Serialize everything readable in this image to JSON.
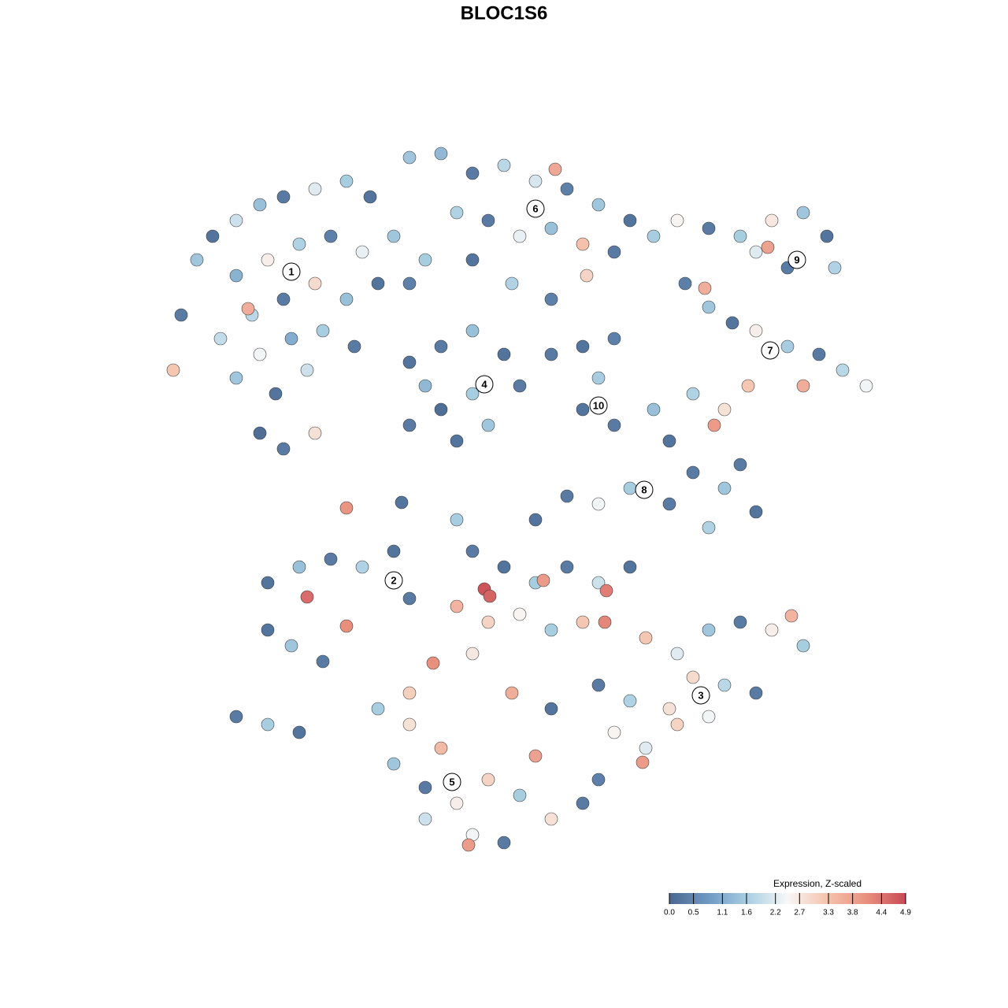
{
  "chart_data": {
    "type": "scatter",
    "title": "BLOC1S6",
    "xlim": [
      0,
      128
    ],
    "ylim": [
      0,
      128
    ],
    "series": [
      {
        "x": [
          23,
          25,
          27,
          30,
          33,
          36,
          40,
          44,
          47,
          30,
          34,
          38,
          42,
          46,
          50,
          32,
          36,
          40,
          44,
          48,
          28,
          33,
          37,
          41,
          45,
          30,
          35,
          39,
          33,
          36,
          40,
          22,
          31.5,
          52,
          54,
          52,
          56,
          60,
          64,
          68,
          72,
          76,
          80,
          83,
          58,
          62,
          66,
          70,
          74,
          78,
          60,
          65,
          70,
          70.5,
          74.5,
          86,
          90,
          94,
          98,
          102,
          105,
          106,
          100,
          96,
          97.5,
          87,
          90,
          93,
          96,
          100,
          104,
          107,
          110,
          102,
          95,
          88,
          92,
          89.5,
          52,
          56,
          60,
          64,
          66,
          60,
          56,
          52,
          58,
          62,
          54,
          70,
          74,
          78,
          76,
          74,
          78,
          83,
          85,
          88,
          92,
          96,
          90,
          85,
          80,
          76,
          72,
          68,
          94,
          90.7,
          34,
          38,
          42,
          46,
          50,
          52,
          34,
          37,
          41,
          39,
          44,
          30,
          34,
          38,
          44,
          51,
          58,
          60,
          64,
          68,
          72,
          76,
          80,
          61.5,
          62.2,
          69,
          77,
          58,
          62,
          66,
          70,
          74,
          76.8,
          55,
          60,
          82,
          86,
          90,
          94,
          98,
          100.5,
          102,
          88,
          92,
          96,
          85,
          80,
          78,
          82,
          86,
          90,
          76,
          81.6,
          48,
          52,
          56,
          50,
          54,
          58,
          62,
          66,
          70,
          74,
          54,
          60,
          64,
          68,
          59.5,
          52,
          65,
          70,
          76
        ],
        "y": [
          88,
          95,
          98,
          100,
          102,
          103,
          104,
          105,
          103,
          93,
          95,
          97,
          98,
          96,
          98,
          88,
          90,
          92,
          90,
          92,
          85,
          83,
          85,
          86,
          84,
          80,
          78,
          81,
          73,
          71,
          73,
          81,
          88.8,
          92,
          95,
          108,
          108.5,
          106,
          107,
          105,
          104,
          102,
          100,
          98,
          101,
          100,
          98,
          99,
          97,
          96,
          95,
          92,
          90,
          106.5,
          93,
          100,
          99,
          98,
          100,
          101,
          98,
          94,
          94,
          96,
          96.6,
          92,
          89,
          87,
          86,
          84,
          83,
          81,
          79,
          79,
          79,
          78,
          76,
          91.4,
          82,
          84,
          86,
          83,
          79,
          78,
          76,
          74,
          72,
          74,
          79,
          83,
          84,
          85,
          80,
          76,
          74,
          76,
          72,
          68,
          66,
          63,
          61,
          64,
          66,
          64,
          65,
          62,
          69,
          74,
          54,
          56,
          57,
          56,
          58,
          52,
          48,
          46,
          44,
          52.2,
          48.5,
          37,
          36,
          35,
          63.5,
          64.2,
          62,
          58,
          56,
          54,
          56,
          54,
          56,
          53.2,
          52.3,
          54.3,
          53,
          51,
          49,
          50,
          48,
          49,
          49,
          43.8,
          45,
          47,
          45,
          48,
          49,
          48,
          49.8,
          46,
          42,
          41,
          40,
          38,
          39,
          35,
          33,
          36,
          37,
          41,
          31.2,
          38,
          36,
          33,
          31,
          28,
          26,
          29,
          27,
          24,
          26,
          24,
          22,
          21,
          32,
          20.7,
          40,
          40,
          38,
          29
        ],
        "values": [
          0.3,
          1.5,
          0.2,
          2.0,
          1.4,
          0.3,
          2.2,
          1.6,
          0.2,
          1.2,
          2.6,
          1.7,
          0.4,
          2.3,
          1.5,
          1.8,
          0.3,
          2.9,
          1.4,
          0.2,
          1.9,
          2.4,
          1.1,
          1.6,
          0.3,
          1.5,
          0.2,
          2.0,
          0.1,
          0.3,
          2.8,
          3.2,
          3.6,
          0.4,
          1.6,
          1.5,
          1.3,
          0.3,
          1.8,
          2.1,
          0.4,
          1.5,
          0.2,
          1.6,
          1.7,
          0.3,
          2.3,
          1.4,
          3.3,
          0.3,
          0.2,
          1.7,
          0.4,
          3.7,
          3.0,
          2.5,
          0.3,
          1.6,
          2.7,
          1.5,
          0.2,
          1.7,
          0.3,
          2.2,
          3.8,
          0.4,
          1.5,
          0.2,
          2.6,
          1.6,
          0.3,
          1.8,
          2.4,
          3.6,
          3.2,
          1.7,
          2.8,
          3.6,
          0.2,
          0.3,
          1.4,
          0.2,
          0.3,
          1.6,
          0.1,
          0.3,
          0.2,
          1.5,
          1.3,
          0.3,
          0.2,
          0.4,
          1.6,
          0.2,
          0.3,
          1.4,
          0.2,
          0.3,
          1.5,
          0.2,
          1.7,
          0.3,
          1.6,
          2.4,
          0.3,
          0.2,
          0.3,
          3.9,
          0.2,
          1.4,
          0.3,
          1.7,
          0.2,
          0.3,
          0.2,
          1.5,
          0.3,
          4.5,
          4.1,
          0.3,
          1.6,
          0.2,
          4.0,
          0.2,
          1.6,
          0.3,
          0.2,
          1.6,
          0.3,
          2.0,
          0.2,
          4.8,
          4.6,
          3.9,
          4.3,
          3.5,
          3.0,
          2.5,
          1.6,
          3.2,
          4.2,
          4.1,
          2.7,
          3.2,
          2.2,
          1.5,
          0.3,
          2.6,
          3.5,
          1.6,
          2.9,
          1.8,
          0.3,
          2.8,
          1.7,
          2.5,
          2.2,
          3.0,
          2.4,
          0.3,
          3.9,
          1.6,
          2.8,
          3.4,
          1.5,
          0.3,
          2.6,
          3.0,
          1.6,
          2.8,
          0.3,
          2.0,
          2.4,
          0.3,
          3.8,
          3.9,
          3.1,
          3.6,
          0.2,
          0.4
        ]
      }
    ],
    "clusters": [
      {
        "label": "1",
        "x": 37,
        "y": 93.5
      },
      {
        "label": "2",
        "x": 50,
        "y": 54.3
      },
      {
        "label": "3",
        "x": 89,
        "y": 39.7
      },
      {
        "label": "4",
        "x": 61.5,
        "y": 79.2
      },
      {
        "label": "5",
        "x": 57.4,
        "y": 28.7
      },
      {
        "label": "6",
        "x": 68,
        "y": 101.5
      },
      {
        "label": "7",
        "x": 97.8,
        "y": 83.5
      },
      {
        "label": "8",
        "x": 81.8,
        "y": 65.8
      },
      {
        "label": "9",
        "x": 101.2,
        "y": 95
      },
      {
        "label": "10",
        "x": 76,
        "y": 76.5
      }
    ],
    "colorbar": {
      "title": "Expression, Z-scaled",
      "lim": [
        0,
        4.9
      ],
      "ticks": [
        {
          "value": 0,
          "label": "0.0"
        },
        0.5,
        1.1,
        1.6,
        2.2,
        2.7,
        3.3,
        3.8,
        4.4,
        4.9
      ],
      "colors": [
        "#4a6890",
        "#6f9ac4",
        "#a9cfe2",
        "#f7f7f7",
        "#f5c3ad",
        "#e9907f",
        "#c94a55"
      ]
    }
  }
}
